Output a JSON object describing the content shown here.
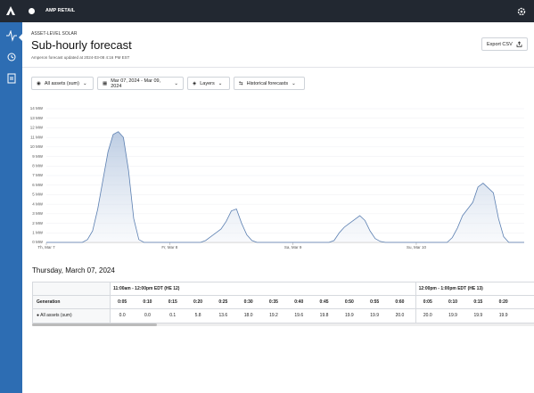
{
  "header": {
    "brand": "AMP RETAIL",
    "section": "ASSET-LEVEL SOLAR",
    "title": "Sub-hourly forecast",
    "subtitle": "Amperon forecast updated at 2024-03-08 4:16 PM EST",
    "export": "Export CSV"
  },
  "filters": [
    "All assets (sum)",
    "Mar 07, 2024 - Mar 09, 2024",
    "Layers",
    "Historical forecasts"
  ],
  "chart_data": {
    "type": "area",
    "color": "#5b7fb1",
    "categories": [
      "Th, Mar 7",
      null,
      null,
      null,
      null,
      null,
      null,
      null,
      null,
      null,
      null,
      null,
      null,
      null,
      null,
      null,
      null,
      null,
      null,
      null,
      null,
      null,
      null,
      null,
      "Fr, Mar 8",
      null,
      null,
      null,
      null,
      null,
      null,
      null,
      null,
      null,
      null,
      null,
      null,
      null,
      null,
      null,
      null,
      null,
      null,
      null,
      null,
      null,
      null,
      null,
      "Sa, Mar 9",
      null,
      null,
      null,
      null,
      null,
      null,
      null,
      null,
      null,
      null,
      null,
      null,
      null,
      null,
      null,
      null,
      null,
      null,
      null,
      null,
      null,
      null,
      null,
      "Su, Mar 10",
      null,
      null,
      null,
      null,
      null,
      null,
      null,
      null,
      null,
      null,
      null,
      null,
      null,
      null,
      null,
      null,
      null,
      null,
      null,
      null,
      null
    ],
    "values": [
      0,
      0,
      0,
      0,
      0,
      0,
      0,
      0,
      0.3,
      1.2,
      3.5,
      6.5,
      9.5,
      11.3,
      11.6,
      11.0,
      7.5,
      2.5,
      0.3,
      0,
      0,
      0,
      0,
      0,
      0,
      0,
      0,
      0,
      0,
      0,
      0,
      0.2,
      0.6,
      1.0,
      1.4,
      2.2,
      3.3,
      3.5,
      2.0,
      0.8,
      0.2,
      0,
      0,
      0,
      0,
      0,
      0,
      0,
      0,
      0,
      0,
      0,
      0,
      0,
      0,
      0,
      0.2,
      1.0,
      1.6,
      2.0,
      2.4,
      2.8,
      2.3,
      1.2,
      0.4,
      0.1,
      0,
      0,
      0,
      0,
      0,
      0,
      0,
      0,
      0,
      0,
      0,
      0,
      0,
      0.5,
      1.5,
      2.8,
      3.5,
      4.2,
      5.8,
      6.2,
      5.7,
      5.2,
      2.5,
      0.6,
      0,
      0,
      0,
      0
    ],
    "ylim": [
      0,
      14
    ],
    "yticks": [
      {
        "value": 0,
        "label": "0 MW"
      },
      {
        "value": 1,
        "label": "1 MW"
      },
      {
        "value": 2,
        "label": "2 MW"
      },
      {
        "value": 3,
        "label": "3 MW"
      },
      {
        "value": 4,
        "label": "4 MW"
      },
      {
        "value": 5,
        "label": "5 MW"
      },
      {
        "value": 6,
        "label": "6 MW"
      },
      {
        "value": 7,
        "label": "7 MW"
      },
      {
        "value": 8,
        "label": "8 MW"
      },
      {
        "value": 9,
        "label": "9 MW"
      },
      {
        "value": 10,
        "label": "10 MW"
      },
      {
        "value": 11,
        "label": "11 MW"
      },
      {
        "value": 12,
        "label": "12 MW"
      },
      {
        "value": 13,
        "label": "13 MW"
      },
      {
        "value": 14,
        "label": "14 MW"
      }
    ],
    "grid": true
  },
  "table": {
    "date": "Thursday, March 07, 2024",
    "row_header": "Generation",
    "row_label": "All assets (sum)",
    "groups": [
      {
        "label": "11:00am - 12:00pm EDT (HE 12)",
        "columns": [
          "0:05",
          "0:10",
          "0:15",
          "0:20",
          "0:25",
          "0:30",
          "0:35",
          "0:40",
          "0:45",
          "0:50",
          "0:55",
          "0:60"
        ],
        "values": [
          "0.0",
          "0.0",
          "0.1",
          "5.8",
          "13.6",
          "18.0",
          "19.2",
          "19.6",
          "19.8",
          "19.9",
          "19.9",
          "20.0"
        ]
      },
      {
        "label": "12:00pm - 1:00pm EDT (HE 13)",
        "columns": [
          "0:05",
          "0:10",
          "0:15",
          "0:20"
        ],
        "values": [
          "20.0",
          "19.9",
          "19.9",
          "19.9"
        ]
      }
    ]
  }
}
